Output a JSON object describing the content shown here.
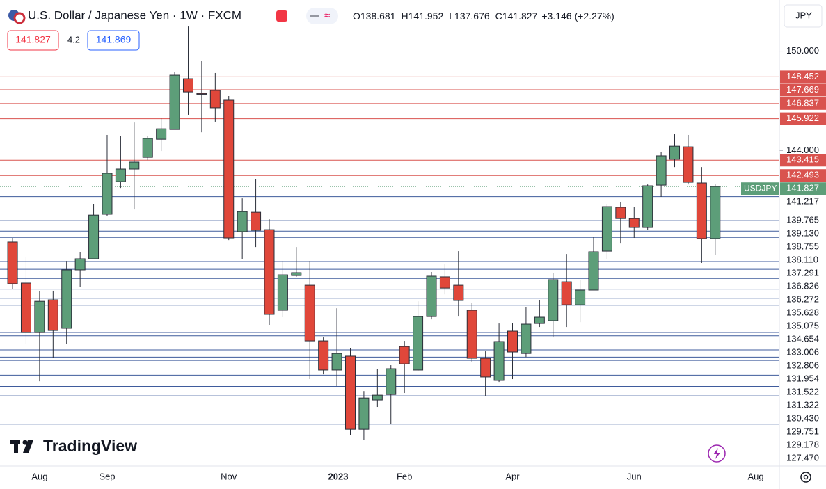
{
  "header": {
    "title": "U.S. Dollar / Japanese Yen · 1W · FXCM",
    "ohlc_prefixes": [
      "O",
      "H",
      "L",
      "C"
    ],
    "change": "+3.146",
    "change_percent": "(+2.27%)",
    "sell_price": "141.827",
    "spread": "4.2",
    "buy_price": "141.869",
    "currency_button": "JPY",
    "brand": "TradingView"
  },
  "chart_data": {
    "type": "candlestick",
    "symbol": "USDJPY",
    "up_color": "#5d9e79",
    "down_color": "#e0473a",
    "open": [
      138.47,
      135.99,
      133.0,
      134.98,
      133.26,
      136.79,
      137.46,
      140.15,
      142.12,
      142.88,
      143.59,
      144.68,
      145.27,
      148.34,
      147.45,
      147.63,
      147.04,
      139.1,
      140.27,
      139.22,
      134.35,
      136.45,
      135.86,
      132.5,
      130.74,
      131.58,
      127.16,
      128.93,
      129.26,
      132.16,
      130.74,
      133.97,
      136.37,
      135.86,
      134.35,
      131.45,
      130.11,
      133.09,
      131.74,
      133.55,
      133.72,
      136.07,
      134.68,
      135.57,
      137.92,
      140.57,
      139.89,
      139.35,
      141.91,
      143.47,
      144.22,
      142.04,
      138.681
    ],
    "high": [
      138.72,
      137.54,
      135.53,
      135.53,
      137.33,
      137.88,
      140.78,
      144.94,
      144.89,
      145.69,
      144.89,
      145.95,
      148.76,
      151.49,
      149.43,
      148.68,
      147.29,
      141.11,
      142.25,
      139.85,
      137.33,
      138.17,
      137.33,
      132.71,
      134.47,
      132.08,
      129.47,
      130.82,
      131.03,
      132.5,
      134.89,
      136.66,
      137.12,
      137.92,
      134.81,
      131.87,
      133.55,
      133.59,
      134.52,
      134.98,
      136.62,
      137.75,
      136.16,
      138.8,
      140.78,
      140.9,
      140.57,
      141.95,
      143.93,
      144.98,
      144.94,
      143.0,
      141.952
    ],
    "low": [
      135.65,
      132.29,
      130.06,
      131.49,
      132.33,
      135.78,
      137.46,
      140.06,
      141.74,
      140.44,
      143.42,
      143.97,
      145.27,
      146.16,
      145.1,
      145.74,
      138.59,
      137.46,
      138.17,
      133.47,
      133.93,
      136.37,
      130.19,
      130.48,
      129.77,
      126.83,
      126.53,
      128.51,
      127.46,
      129.35,
      130.69,
      133.8,
      135.31,
      133.97,
      131.24,
      129.18,
      130.02,
      130.19,
      131.53,
      133.34,
      132.71,
      133.34,
      133.63,
      135.57,
      137.46,
      138.38,
      138.72,
      139.22,
      141.2,
      143.0,
      141.95,
      137.21,
      137.676
    ],
    "close": [
      135.95,
      133.0,
      134.89,
      133.13,
      136.79,
      137.46,
      140.1,
      142.63,
      142.88,
      143.3,
      144.73,
      145.31,
      148.55,
      147.54,
      147.4,
      146.58,
      138.72,
      140.31,
      139.18,
      134.1,
      136.49,
      136.62,
      132.5,
      130.74,
      131.74,
      127.16,
      129.05,
      129.22,
      130.82,
      131.11,
      133.97,
      136.41,
      135.69,
      134.94,
      131.45,
      130.32,
      132.46,
      131.83,
      133.51,
      133.93,
      136.2,
      134.68,
      135.57,
      137.88,
      140.61,
      139.89,
      139.35,
      141.87,
      143.68,
      144.26,
      142.08,
      138.68,
      141.827
    ],
    "xlim": [
      -0.93,
      56.75
    ],
    "xticks": [
      {
        "value": 2,
        "label": "Aug"
      },
      {
        "value": 7,
        "label": "Sep"
      },
      {
        "value": 16,
        "label": "Nov"
      },
      {
        "value": 24.1,
        "label": "2023"
      },
      {
        "value": 29,
        "label": "Feb"
      },
      {
        "value": 37,
        "label": "Apr"
      },
      {
        "value": 46,
        "label": "Jun"
      },
      {
        "value": 55,
        "label": "Aug"
      }
    ],
    "ylim": [
      124.94,
      153.09
    ],
    "yticks": [
      {
        "value": 150,
        "label": "150.000"
      },
      {
        "value": 144,
        "label": "144.000"
      }
    ],
    "grid": false,
    "resistance_levels": {
      "color": "#d9534f",
      "levels": [
        148.452,
        147.669,
        146.837,
        145.922,
        143.415,
        142.493
      ]
    },
    "support_levels": {
      "color": "#3f5b9c",
      "levels": [
        141.217,
        139.765,
        {
          "value": 139.13,
          "label": "139.130"
        },
        138.755,
        {
          "value": 138.11,
          "label": "138.110"
        },
        137.291,
        136.826,
        136.272,
        135.628,
        135.075,
        134.654,
        133.006,
        132.806,
        131.954,
        131.522,
        131.322,
        {
          "value": 130.43,
          "label": "130.430"
        },
        129.751,
        129.178,
        {
          "value": 127.47,
          "label": "127.470"
        }
      ]
    }
  }
}
